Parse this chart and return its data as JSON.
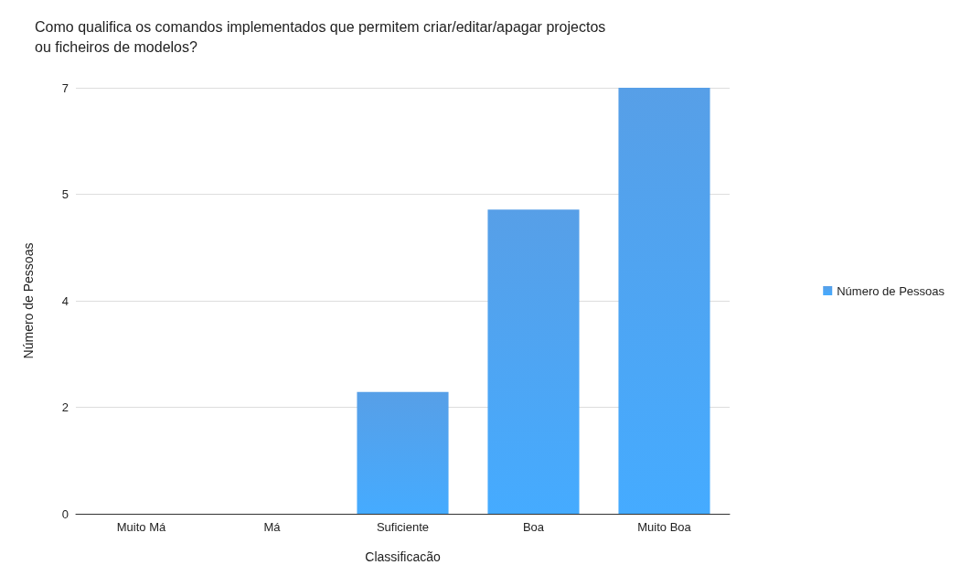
{
  "chart_data": {
    "type": "bar",
    "title": "Como qualifica os comandos implementados que permitem criar/editar/apagar projectos ou ficheiros de modelos?",
    "xlabel": "Classificacão",
    "ylabel": "Número de Pessoas",
    "categories": [
      "Muito Má",
      "Má",
      "Suficiente",
      "Boa",
      "Muito Boa"
    ],
    "series": [
      {
        "name": "Número de Pessoas",
        "color": "#3a8fe3",
        "values": [
          0,
          0,
          2,
          5,
          7
        ]
      }
    ],
    "ylim": [
      0,
      7
    ],
    "yticks": [
      0,
      {
        "value": 1.75,
        "label": "2"
      },
      {
        "value": 3.5,
        "label": "4"
      },
      {
        "value": 5.25,
        "label": "5"
      },
      7
    ],
    "grid": "y",
    "legend": "right"
  }
}
